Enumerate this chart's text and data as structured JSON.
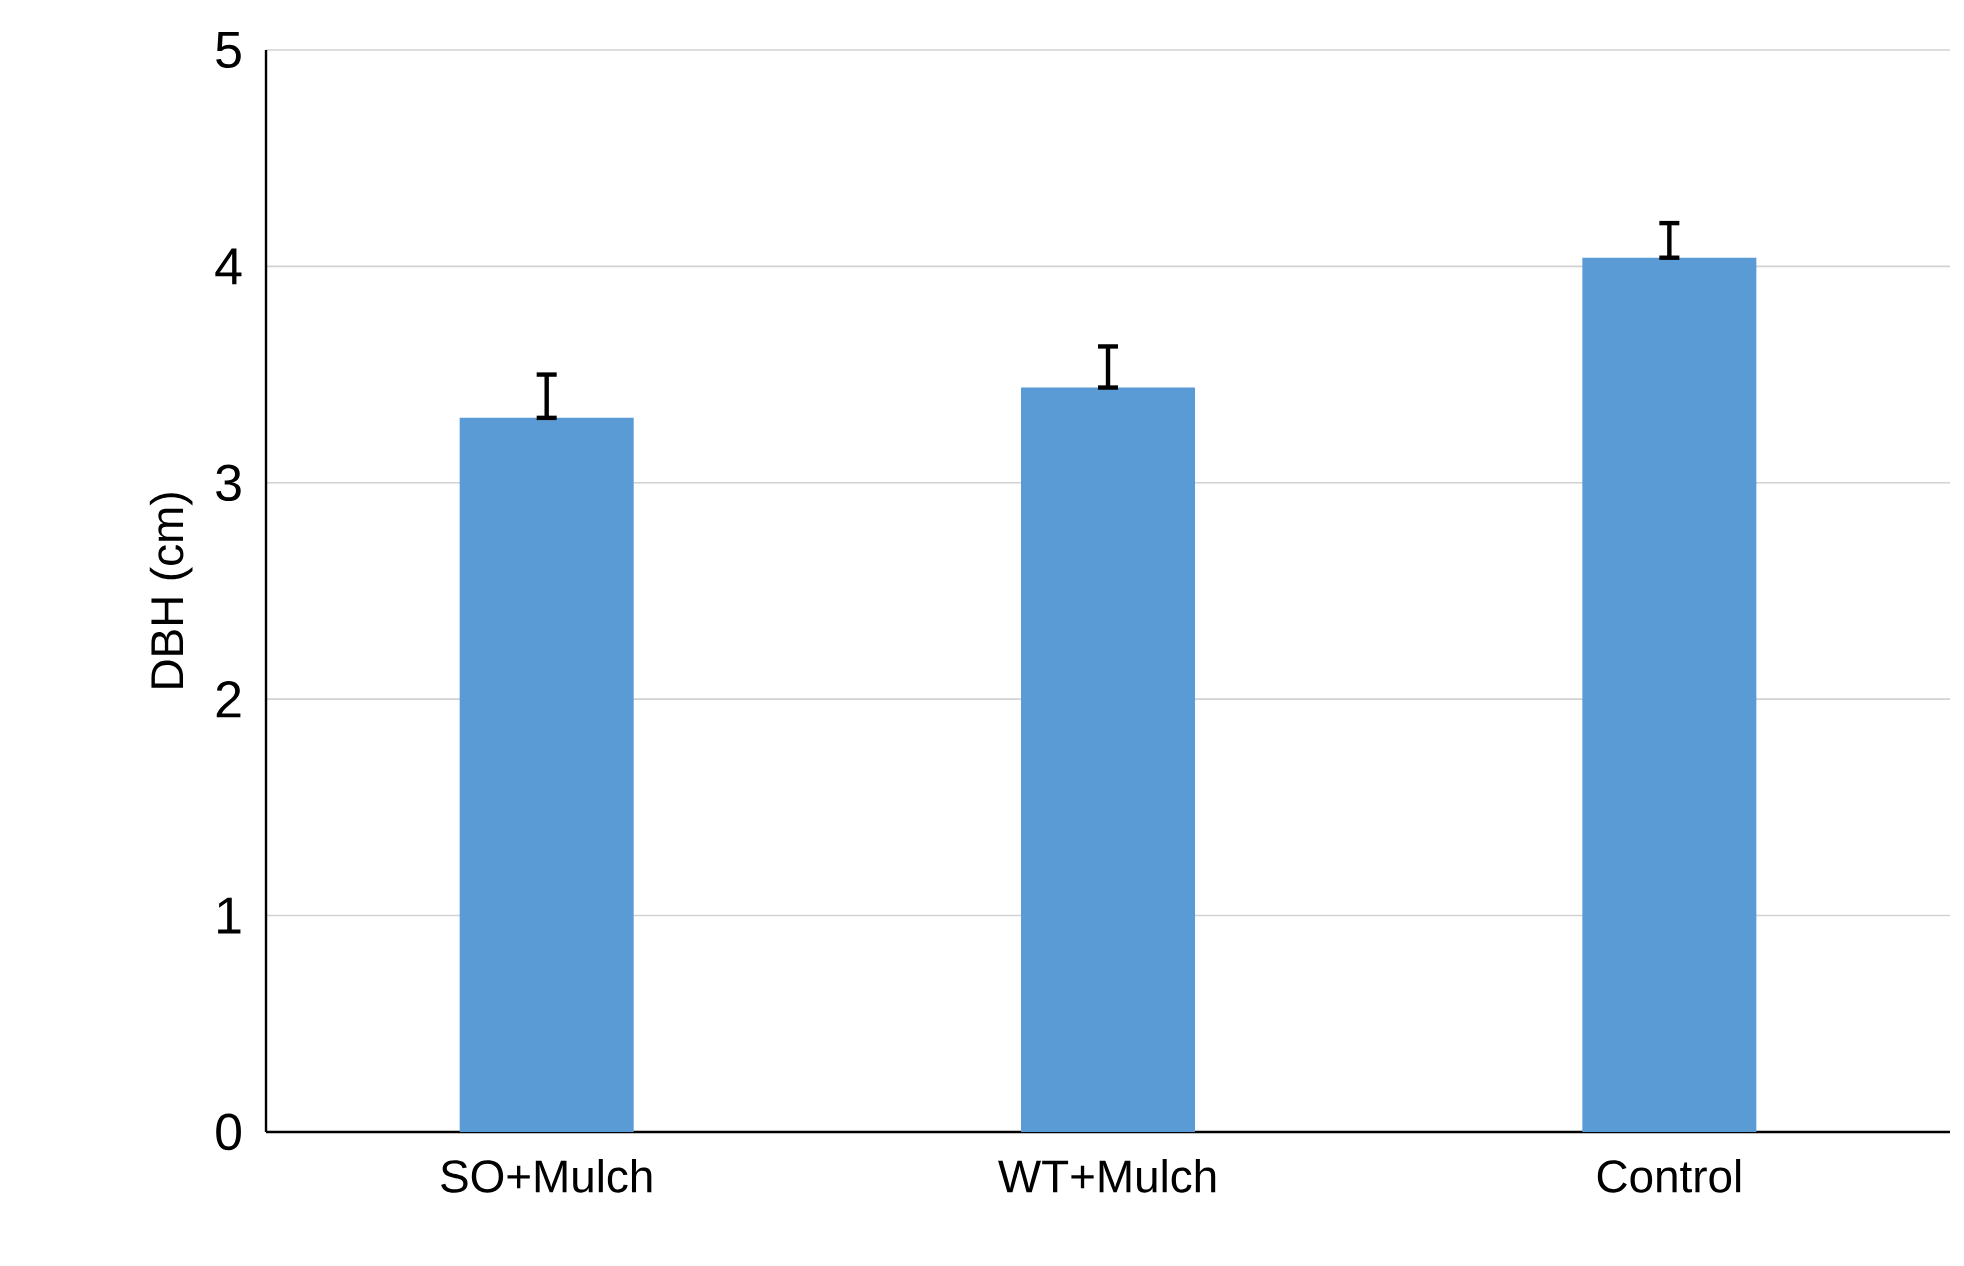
{
  "chart_data": {
    "type": "bar",
    "ylabel": "DBH (cm)",
    "categories": [
      "SO+Mulch",
      "WT+Mulch",
      "Control"
    ],
    "values": [
      3.3,
      3.44,
      4.04
    ],
    "errors": [
      [
        3.3,
        3.5
      ],
      [
        3.44,
        3.63
      ],
      [
        4.04,
        4.2
      ]
    ],
    "color": "#5b9bd5",
    "ylim": [
      0,
      5
    ],
    "yticks": [
      0,
      1,
      2,
      3,
      4,
      5
    ],
    "grid": "y"
  }
}
